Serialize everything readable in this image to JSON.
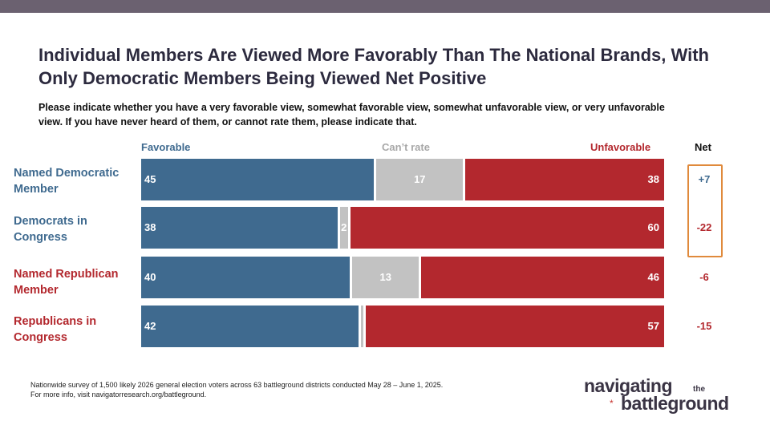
{
  "title": "Individual Members Are Viewed More Favorably Than The National Brands, With Only Democratic Members Being Viewed Net Positive",
  "subtitle": "Please indicate whether you have a very favorable view, somewhat favorable view, somewhat unfavorable view, or very unfavorable view. If you have never heard of them, or cannot rate them, please indicate that.",
  "chart_data": {
    "type": "bar",
    "orientation": "horizontal-stacked-100",
    "column_headers": {
      "favorable": "Favorable",
      "cant_rate": "Can’t rate",
      "unfavorable": "Unfavorable",
      "net": "Net"
    },
    "categories": [
      {
        "label": "Named Democratic Member",
        "party": "dem"
      },
      {
        "label": "Democrats in Congress",
        "party": "dem"
      },
      {
        "label": "Named Republican Member",
        "party": "rep"
      },
      {
        "label": "Republicans in Congress",
        "party": "rep"
      }
    ],
    "series": [
      {
        "name": "Favorable",
        "values": [
          45,
          38,
          40,
          42
        ],
        "color": "#3f6a8f"
      },
      {
        "name": "Can't rate",
        "values": [
          17,
          2,
          13,
          1
        ],
        "color": "#c2c2c2"
      },
      {
        "name": "Unfavorable",
        "values": [
          38,
          60,
          46,
          57
        ],
        "color": "#b3282e"
      }
    ],
    "value_labels": [
      [
        "45",
        "17",
        "38"
      ],
      [
        "38",
        "2",
        "60"
      ],
      [
        "40",
        "13",
        "46"
      ],
      [
        "42",
        "",
        "57"
      ]
    ],
    "net": [
      "+7",
      "-22",
      "-6",
      "-15"
    ],
    "highlighted_net_rows": [
      0,
      1
    ]
  },
  "colors": {
    "dem": "#3f6a8f",
    "rep": "#b3282e",
    "cant": "#c2c2c2",
    "cant_text": "#a8a8a8",
    "highlight": "#e08a3c"
  },
  "footnote": {
    "line1": "Nationwide survey of 1,500 likely 2026 general election voters across 63 battleground districts conducted May 28 – June 1, 2025.",
    "line2": "For more info, visit navigatorresearch.org/battleground."
  },
  "logo": {
    "word1": "navigating",
    "word2": "the",
    "word3": "battleground",
    "mark": "*"
  }
}
